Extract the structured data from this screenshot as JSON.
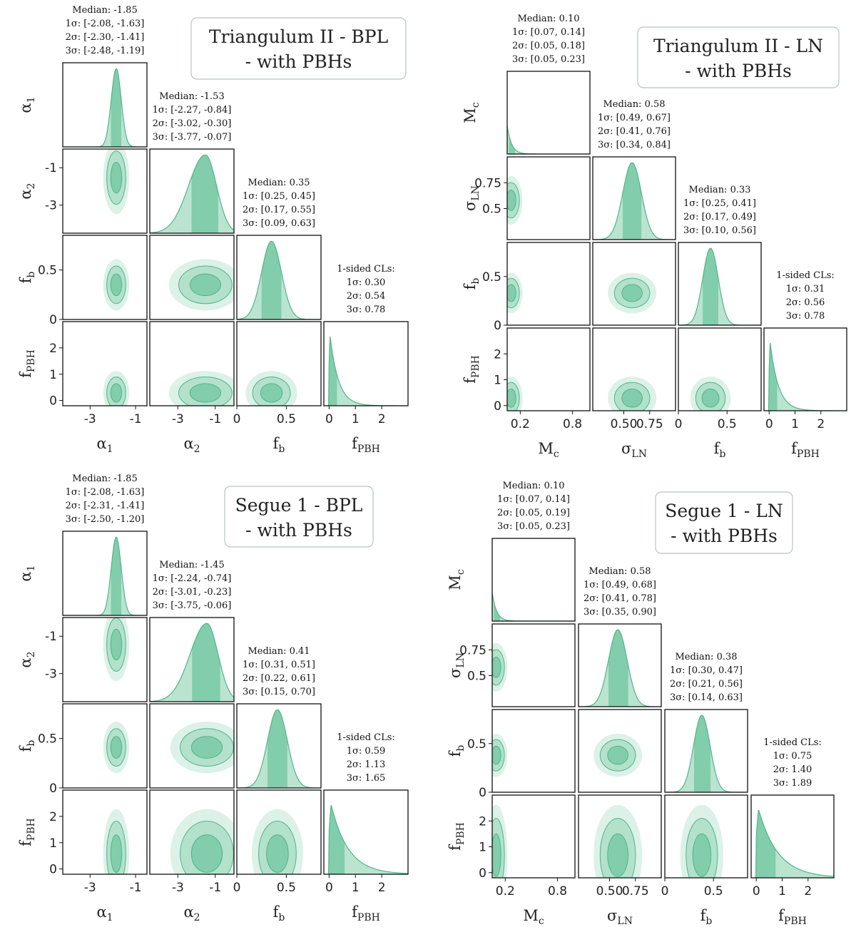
{
  "colors": {
    "fill3": "#dcf1e7",
    "fill2": "#b3e1cb",
    "fill1": "#82cdab",
    "line": "#4fb589",
    "shade": "#3aa679"
  },
  "chart_data": [
    {
      "type": "corner",
      "title": "Triangulum II - BPL\n- with PBHs",
      "params": [
        "α_1",
        "α_2",
        "f_b",
        "f_PBH"
      ],
      "axis_labels": [
        "α1",
        "α2",
        "fb",
        "fPBH"
      ],
      "ranges": [
        [
          -4.2,
          -0.5
        ],
        [
          -4.5,
          0.0
        ],
        [
          0.0,
          0.85
        ],
        [
          -0.2,
          3.0
        ]
      ],
      "x_ticks": [
        [
          -3,
          -1
        ],
        [
          -3,
          -1
        ],
        [
          0,
          0.5
        ],
        [
          0,
          1,
          2
        ]
      ],
      "x_tick_labels": [
        [
          "-3",
          "-1"
        ],
        [
          "-3",
          "-1"
        ],
        [
          "0",
          "0.5"
        ],
        [
          "0",
          "1",
          "2"
        ]
      ],
      "y_ticks": {
        "α_2": [
          -1,
          -3
        ],
        "f_b": [
          0.5,
          0
        ],
        "f_PBH": [
          2,
          1,
          0
        ]
      },
      "y_tick_labels": {
        "α_2": [
          "-1",
          "-3"
        ],
        "f_b": [
          "0.5",
          "0"
        ],
        "f_PBH": [
          "2",
          "1",
          "0"
        ]
      },
      "marginals": [
        {
          "kind": "gauss",
          "median": -1.85,
          "sigma": 0.22,
          "shade": [
            -2.08,
            -1.63
          ]
        },
        {
          "kind": "skew",
          "median": -1.53,
          "sl": 0.9,
          "sr": 0.6,
          "shade": [
            -2.27,
            -0.84
          ]
        },
        {
          "kind": "gauss",
          "median": 0.35,
          "sigma": 0.1,
          "shade": [
            0.25,
            0.45
          ]
        },
        {
          "kind": "half",
          "scale": 0.32,
          "shade": [
            0,
            0.3
          ]
        }
      ],
      "stats": [
        [
          "Median: -1.85",
          "1σ: [-2.08, -1.63]",
          "2σ: [-2.30, -1.41]",
          "3σ: [-2.48, -1.19]"
        ],
        [
          "Median: -1.53",
          "1σ: [-2.27, -0.84]",
          "2σ: [-3.02, -0.30]",
          "3σ: [-3.77, -0.07]"
        ],
        [
          "Median: 0.35",
          "1σ: [0.25, 0.45]",
          "2σ: [0.17, 0.55]",
          "3σ: [0.09, 0.63]"
        ],
        [
          "1-sided CLs:",
          "1σ: 0.30",
          "2σ: 0.54",
          "3σ: 0.78"
        ]
      ]
    },
    {
      "type": "corner",
      "title": "Triangulum II - LN\n- with PBHs",
      "params": [
        "M_c",
        "σ_LN",
        "f_b",
        "f_PBH"
      ],
      "axis_labels": [
        "Mc",
        "σLN",
        "fb",
        "fPBH"
      ],
      "ranges": [
        [
          0.05,
          1.0
        ],
        [
          0.2,
          1.0
        ],
        [
          0.0,
          0.85
        ],
        [
          -0.2,
          3.0
        ]
      ],
      "x_ticks": [
        [
          0.2,
          0.8
        ],
        [
          0.5,
          0.75
        ],
        [
          0,
          0.5
        ],
        [
          0,
          1,
          2
        ]
      ],
      "x_tick_labels": [
        [
          "0.2",
          "0.8"
        ],
        [
          "0.50",
          "0.75"
        ],
        [
          "0",
          "0.5"
        ],
        [
          "0",
          "1",
          "2"
        ]
      ],
      "y_ticks": {
        "σ_LN": [
          0.75,
          0.5
        ],
        "f_b": [
          0.5,
          0
        ],
        "f_PBH": [
          2,
          1,
          0
        ]
      },
      "y_tick_labels": {
        "σ_LN": [
          "0.75",
          "0.5"
        ],
        "f_b": [
          "0.5",
          "0"
        ],
        "f_PBH": [
          "2",
          "1",
          "0"
        ]
      },
      "marginals": [
        {
          "kind": "half",
          "scale": 0.05,
          "shade": [
            0.07,
            0.14
          ]
        },
        {
          "kind": "gauss",
          "median": 0.58,
          "sigma": 0.09,
          "shade": [
            0.49,
            0.67
          ]
        },
        {
          "kind": "gauss",
          "median": 0.33,
          "sigma": 0.08,
          "shade": [
            0.25,
            0.41
          ]
        },
        {
          "kind": "half",
          "scale": 0.32,
          "shade": [
            0,
            0.31
          ]
        }
      ],
      "stats": [
        [
          "Median: 0.10",
          "1σ: [0.07, 0.14]",
          "2σ: [0.05, 0.18]",
          "3σ: [0.05, 0.23]"
        ],
        [
          "Median: 0.58",
          "1σ: [0.49, 0.67]",
          "2σ: [0.41, 0.76]",
          "3σ: [0.34, 0.84]"
        ],
        [
          "Median: 0.33",
          "1σ: [0.25, 0.41]",
          "2σ: [0.17, 0.49]",
          "3σ: [0.10, 0.56]"
        ],
        [
          "1-sided CLs:",
          "1σ: 0.31",
          "2σ: 0.56",
          "3σ: 0.78"
        ]
      ]
    },
    {
      "type": "corner",
      "title": "Segue 1 - BPL\n- with PBHs",
      "params": [
        "α_1",
        "α_2",
        "f_b",
        "f_PBH"
      ],
      "axis_labels": [
        "α1",
        "α2",
        "fb",
        "fPBH"
      ],
      "ranges": [
        [
          -4.2,
          -0.5
        ],
        [
          -4.5,
          0.0
        ],
        [
          0.0,
          0.85
        ],
        [
          -0.2,
          3.0
        ]
      ],
      "x_ticks": [
        [
          -3,
          -1
        ],
        [
          -3,
          -1
        ],
        [
          0,
          0.5
        ],
        [
          0,
          1,
          2
        ]
      ],
      "x_tick_labels": [
        [
          "-3",
          "-1"
        ],
        [
          "-3",
          "-1"
        ],
        [
          "0",
          "0.5"
        ],
        [
          "0",
          "1",
          "2"
        ]
      ],
      "y_ticks": {
        "α_2": [
          -1,
          -3
        ],
        "f_b": [
          0.5,
          0
        ],
        "f_PBH": [
          2,
          1,
          0
        ]
      },
      "y_tick_labels": {
        "α_2": [
          "-1",
          "-3"
        ],
        "f_b": [
          "0.5",
          "0"
        ],
        "f_PBH": [
          "2",
          "1",
          "0"
        ]
      },
      "marginals": [
        {
          "kind": "gauss",
          "median": -1.85,
          "sigma": 0.22,
          "shade": [
            -2.08,
            -1.63
          ]
        },
        {
          "kind": "skew",
          "median": -1.45,
          "sl": 0.9,
          "sr": 0.6,
          "shade": [
            -2.24,
            -0.74
          ]
        },
        {
          "kind": "gauss",
          "median": 0.41,
          "sigma": 0.1,
          "shade": [
            0.31,
            0.51
          ]
        },
        {
          "kind": "half",
          "scale": 0.65,
          "shade": [
            0,
            0.59
          ]
        }
      ],
      "stats": [
        [
          "Median: -1.85",
          "1σ: [-2.08, -1.63]",
          "2σ: [-2.31, -1.41]",
          "3σ: [-2.50, -1.20]"
        ],
        [
          "Median: -1.45",
          "1σ: [-2.24, -0.74]",
          "2σ: [-3.01, -0.23]",
          "3σ: [-3.75, -0.06]"
        ],
        [
          "Median: 0.41",
          "1σ: [0.31, 0.51]",
          "2σ: [0.22, 0.61]",
          "3σ: [0.15, 0.70]"
        ],
        [
          "1-sided CLs:",
          "1σ: 0.59",
          "2σ: 1.13",
          "3σ: 1.65"
        ]
      ]
    },
    {
      "type": "corner",
      "title": "Segue 1 - LN\n- with PBHs",
      "params": [
        "M_c",
        "σ_LN",
        "f_b",
        "f_PBH"
      ],
      "axis_labels": [
        "Mc",
        "σLN",
        "fb",
        "fPBH"
      ],
      "ranges": [
        [
          0.05,
          1.0
        ],
        [
          0.2,
          1.0
        ],
        [
          0.0,
          0.85
        ],
        [
          -0.2,
          3.0
        ]
      ],
      "x_ticks": [
        [
          0.2,
          0.8
        ],
        [
          0.5,
          0.75
        ],
        [
          0,
          0.5
        ],
        [
          0,
          1,
          2
        ]
      ],
      "x_tick_labels": [
        [
          "0.2",
          "0.8"
        ],
        [
          "0.50",
          "0.75"
        ],
        [
          "0",
          "0.5"
        ],
        [
          "0",
          "1",
          "2"
        ]
      ],
      "y_ticks": {
        "σ_LN": [
          0.75,
          0.5
        ],
        "f_b": [
          0.5,
          0
        ],
        "f_PBH": [
          2,
          1,
          0
        ]
      },
      "y_tick_labels": {
        "σ_LN": [
          "0.75",
          "0.5"
        ],
        "f_b": [
          "0.5",
          "0"
        ],
        "f_PBH": [
          "2",
          "1",
          "0"
        ]
      },
      "marginals": [
        {
          "kind": "half",
          "scale": 0.05,
          "shade": [
            0.07,
            0.14
          ]
        },
        {
          "kind": "gauss",
          "median": 0.58,
          "sigma": 0.09,
          "shade": [
            0.49,
            0.68
          ]
        },
        {
          "kind": "gauss",
          "median": 0.38,
          "sigma": 0.085,
          "shade": [
            0.3,
            0.47
          ]
        },
        {
          "kind": "half",
          "scale": 0.75,
          "shade": [
            0,
            0.75
          ]
        }
      ],
      "stats": [
        [
          "Median: 0.10",
          "1σ: [0.07, 0.14]",
          "2σ: [0.05, 0.19]",
          "3σ: [0.05, 0.23]"
        ],
        [
          "Median: 0.58",
          "1σ: [0.49, 0.68]",
          "2σ: [0.41, 0.78]",
          "3σ: [0.35, 0.90]"
        ],
        [
          "Median: 0.38",
          "1σ: [0.30, 0.47]",
          "2σ: [0.21, 0.56]",
          "3σ: [0.14, 0.63]"
        ],
        [
          "1-sided CLs:",
          "1σ: 0.75",
          "2σ: 1.40",
          "3σ: 1.89"
        ]
      ]
    }
  ]
}
